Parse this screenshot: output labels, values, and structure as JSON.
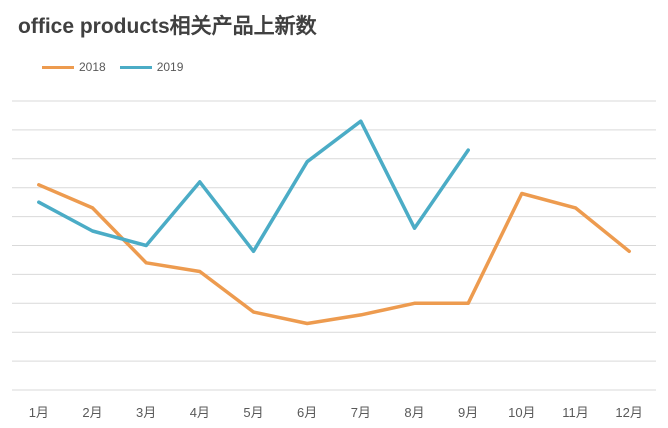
{
  "chart_data": {
    "type": "line",
    "title": "office products相关产品上新数",
    "categories": [
      "1月",
      "2月",
      "3月",
      "4月",
      "5月",
      "6月",
      "7月",
      "8月",
      "9月",
      "10月",
      "11月",
      "12月"
    ],
    "series": [
      {
        "name": "2018",
        "color": "#ED9B4F",
        "values": [
          6.1,
          5.3,
          3.4,
          3.1,
          1.7,
          1.3,
          1.6,
          2.0,
          2.0,
          5.8,
          5.3,
          3.8
        ]
      },
      {
        "name": "2019",
        "color": "#4BACC6",
        "values": [
          5.5,
          4.5,
          4.0,
          6.2,
          3.8,
          6.9,
          8.3,
          4.6,
          7.3,
          null,
          null,
          null
        ]
      }
    ],
    "ylim": [
      -1,
      9
    ],
    "grid": true,
    "legend_position": "top-left"
  }
}
